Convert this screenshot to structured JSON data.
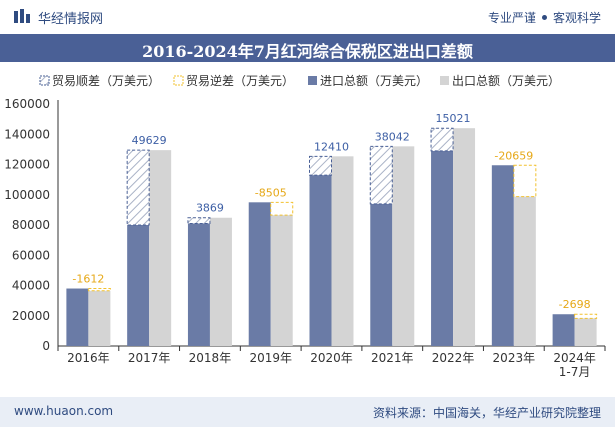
{
  "header": {
    "brand": "华经情报网",
    "slogan_left": "专业严谨",
    "slogan_right": "客观科学"
  },
  "footer": {
    "website": "www.huaon.com",
    "source": "资料来源：中国海关，华经产业研究院整理"
  },
  "colors": {
    "primary": "#4a6096",
    "import_bar": "#6a7ba6",
    "export_bar": "#d4d4d4",
    "surplus": "#4a6096",
    "deficit": "#f2c12e",
    "surplus_label": "#3d5fa5",
    "deficit_label": "#e6a817"
  },
  "chart_data": {
    "type": "bar",
    "title": "2016-2024年7月红河综合保税区进出口差额",
    "categories": [
      "2016年",
      "2017年",
      "2018年",
      "2019年",
      "2020年",
      "2021年",
      "2022年",
      "2023年",
      "2024年\n1-7月"
    ],
    "legend": [
      "贸易顺差（万美元）",
      "贸易逆差（万美元）",
      "进口总额（万美元）",
      "出口总额（万美元）"
    ],
    "ylim": [
      0,
      160000
    ],
    "yticks": [
      0,
      20000,
      40000,
      60000,
      80000,
      100000,
      120000,
      140000,
      160000
    ],
    "series": [
      {
        "name": "进口总额（万美元）",
        "values": [
          38000,
          80000,
          81000,
          95000,
          113000,
          94000,
          129000,
          119500,
          21000
        ]
      },
      {
        "name": "出口总额（万美元）",
        "values": [
          36500,
          129500,
          84800,
          86500,
          125400,
          132000,
          144000,
          98800,
          18300
        ]
      }
    ],
    "balance": [
      -1612,
      49629,
      3869,
      -8505,
      12410,
      38042,
      15021,
      -20659,
      -2698
    ]
  }
}
